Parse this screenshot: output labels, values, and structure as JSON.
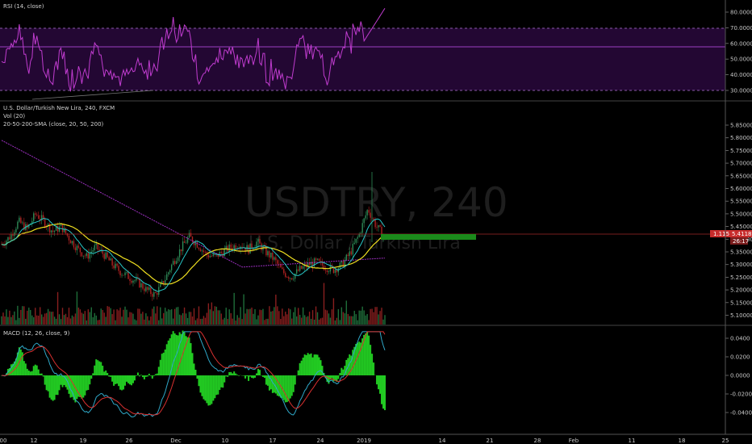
{
  "colors": {
    "background": "#000000",
    "candle_up": "#2e8b57",
    "candle_down": "#b22222",
    "rsi_line": "#c03ccf",
    "rsi_band": "#2a0a3a",
    "sma_fast": "#28c8c8",
    "sma_mid": "#f0e020",
    "sma_slow": "#9b2fbf",
    "macd_line": "#2fa8c8",
    "signal_line": "#d83030",
    "histogram": "#22cc22",
    "price_line": "#c03030",
    "highlight_box": "#1b8a1b",
    "axis_text": "#c8c8c8"
  },
  "rsi_panel": {
    "legend": "RSI (14, close)",
    "levels": {
      "upper": 70,
      "lower": 30,
      "current": 57
    },
    "ticks": [
      "80.0000",
      "70.0000",
      "60.0000",
      "50.0000",
      "40.0000",
      "30.0000"
    ]
  },
  "main_panel": {
    "symbol_line": "U.S. Dollar/Turkish New Lira, 240, FXCM",
    "volume_legend": "Vol (20)",
    "sma_legend": "20-50-200-SMA (close, 20, 50, 200)",
    "watermark_symbol": "USDTRY, 240",
    "watermark_name": "U.S. Dollar / Turkish Lira",
    "ticks": [
      "5.85000",
      "5.80000",
      "5.75000",
      "5.70000",
      "5.65000",
      "5.60000",
      "5.55000",
      "5.50000",
      "5.45000",
      "5.40000",
      "5.35000",
      "5.30000",
      "5.25000",
      "5.20000",
      "5.15000",
      "5.10000"
    ],
    "price_tag": "5.41182",
    "price_tag_left": "1.115",
    "countdown": "26:17"
  },
  "macd_panel": {
    "legend": "MACD (12, 26, close, 9)",
    "ticks": [
      "0.0400",
      "0.0200",
      "0.0000",
      "-0.0200",
      "-0.0400"
    ]
  },
  "time_axis": {
    "labels": [
      "00",
      "12",
      "19",
      "26",
      "Dec",
      "10",
      "17",
      "24",
      "2019",
      "14",
      "21",
      "28",
      "Feb",
      "11",
      "18",
      "25"
    ]
  },
  "chart_data": {
    "type": "candlestick",
    "title": "U.S. Dollar/Turkish New Lira, 240, FXCM",
    "ylim": [
      5.1,
      5.87
    ],
    "close_path": [
      5.38,
      5.41,
      5.47,
      5.44,
      5.5,
      5.47,
      5.43,
      5.45,
      5.4,
      5.36,
      5.33,
      5.37,
      5.34,
      5.3,
      5.27,
      5.25,
      5.23,
      5.2,
      5.18,
      5.23,
      5.3,
      5.36,
      5.41,
      5.38,
      5.34,
      5.33,
      5.35,
      5.37,
      5.38,
      5.36,
      5.39,
      5.35,
      5.32,
      5.27,
      5.25,
      5.28,
      5.3,
      5.31,
      5.29,
      5.28,
      5.3,
      5.35,
      5.42,
      5.52,
      5.45,
      5.41
    ],
    "rsi_ylim": [
      27,
      86
    ],
    "macd_ylim": [
      -0.045,
      0.047
    ]
  }
}
